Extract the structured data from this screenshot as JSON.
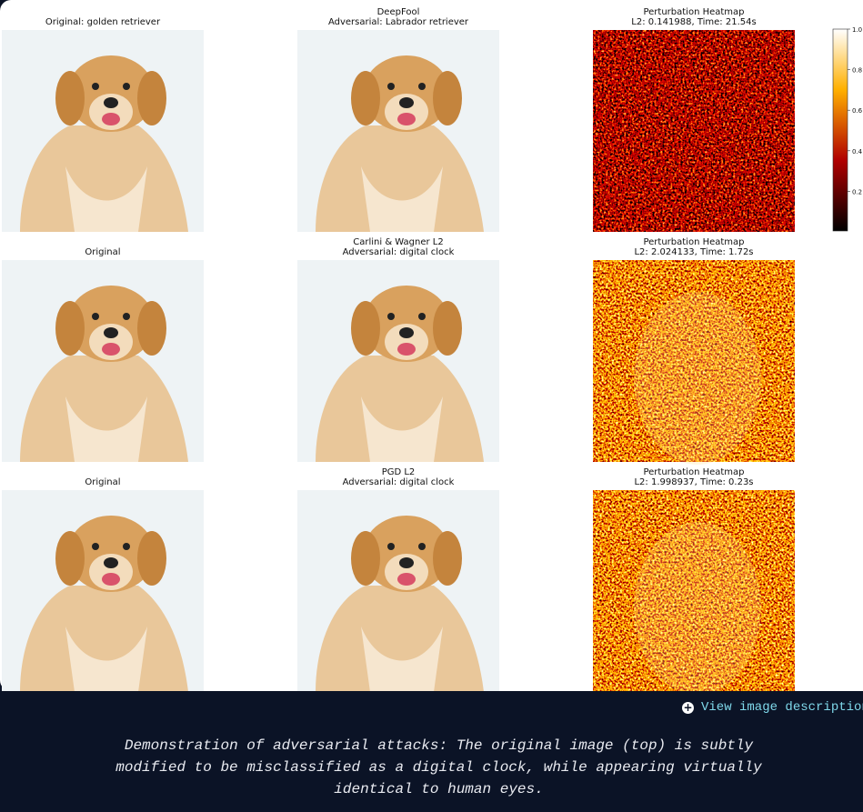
{
  "figure": {
    "rows": [
      {
        "original": "Original: golden retriever",
        "attack": [
          "DeepFool",
          "Adversarial: Labrador retriever"
        ],
        "heatmap": [
          "Perturbation Heatmap",
          "L2: 0.141988, Time: 21.54s"
        ]
      },
      {
        "original": "Original",
        "attack": [
          "Carlini & Wagner L2",
          "Adversarial: digital clock"
        ],
        "heatmap": [
          "Perturbation Heatmap",
          "L2: 2.024133, Time: 1.72s"
        ]
      },
      {
        "original": "Original",
        "attack": [
          "PGD L2",
          "Adversarial: digital clock"
        ],
        "heatmap": [
          "Perturbation Heatmap",
          "L2: 1.998937, Time: 0.23s"
        ]
      }
    ],
    "colorbar_ticks": [
      "1.0",
      "0.8",
      "0.6",
      "0.4",
      "0.2"
    ]
  },
  "link": "View image description",
  "caption": "Demonstration of adversarial attacks: The original image (top) is subtly modified to be misclassified as a digital clock, while appearing virtually identical to human eyes."
}
